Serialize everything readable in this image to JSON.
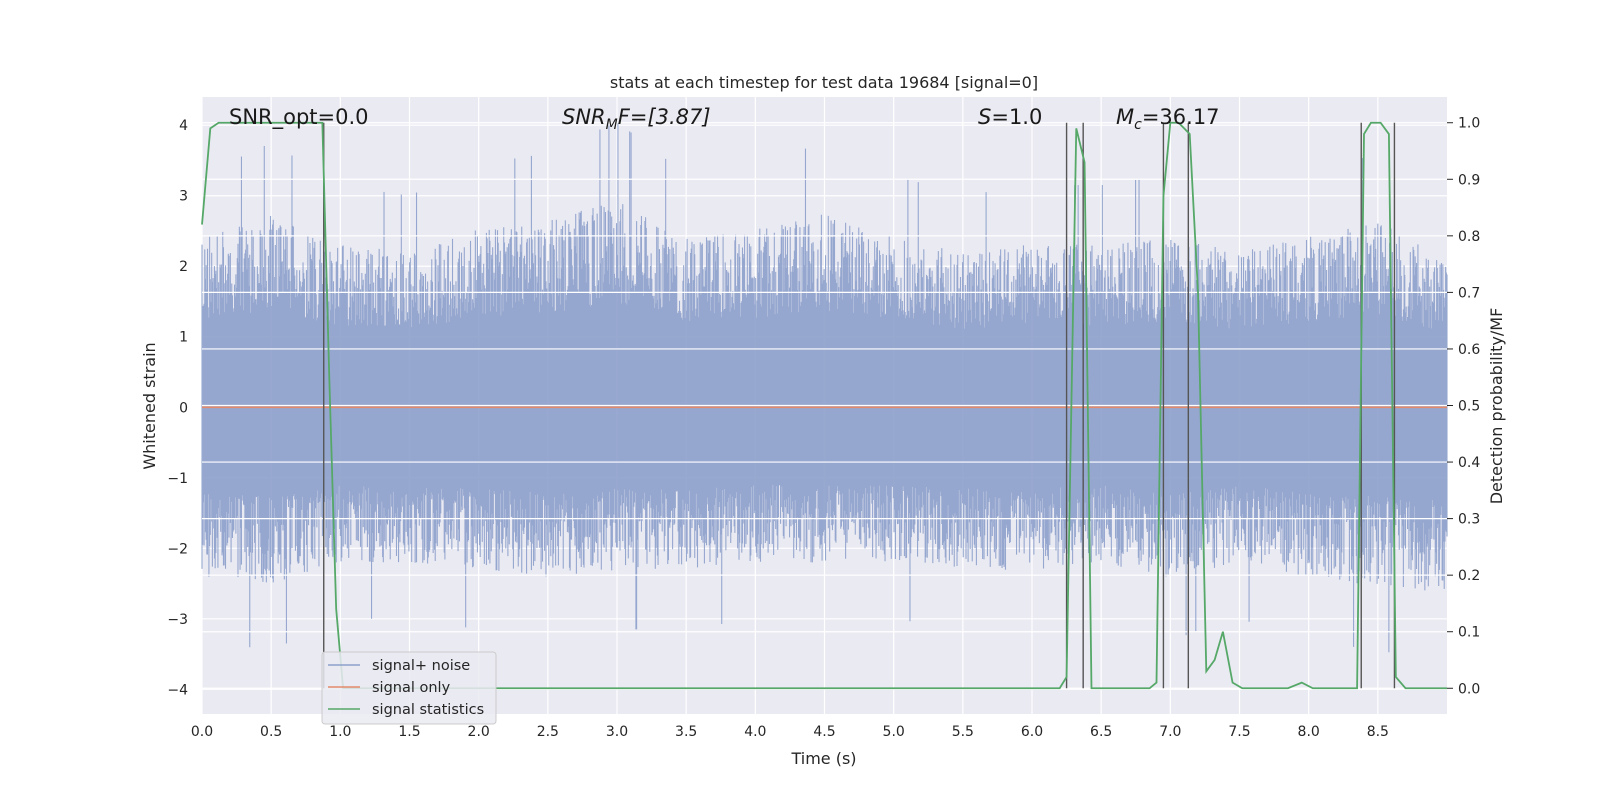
{
  "chart_data": {
    "type": "line",
    "title": "stats at each timestep for test data 19684 [signal=0]",
    "xlabel": "Time (s)",
    "ylabel": "Whitened strain",
    "y2label": "Detection probability/MF",
    "xlim": [
      0,
      9.0
    ],
    "ylim": [
      -4.35,
      4.4
    ],
    "y2lim": [
      -0.0455,
      1.0455
    ],
    "x_ticks": [
      0.0,
      0.5,
      1.0,
      1.5,
      2.0,
      2.5,
      3.0,
      3.5,
      4.0,
      4.5,
      5.0,
      5.5,
      6.0,
      6.5,
      7.0,
      7.5,
      8.0,
      8.5
    ],
    "x_tick_labels": [
      "0.0",
      "0.5",
      "1.0",
      "1.5",
      "2.0",
      "2.5",
      "3.0",
      "3.5",
      "4.0",
      "4.5",
      "5.0",
      "5.5",
      "6.0",
      "6.5",
      "7.0",
      "7.5",
      "8.0",
      "8.5"
    ],
    "y_ticks": [
      -4,
      -3,
      -2,
      -1,
      0,
      1,
      2,
      3,
      4
    ],
    "y_tick_labels": [
      "−4",
      "−3",
      "−2",
      "−1",
      "0",
      "1",
      "2",
      "3",
      "4"
    ],
    "y2_ticks": [
      0.0,
      0.1,
      0.2,
      0.3,
      0.4,
      0.5,
      0.6,
      0.7,
      0.8,
      0.9,
      1.0
    ],
    "y2_tick_labels": [
      "0.0",
      "0.1",
      "0.2",
      "0.3",
      "0.4",
      "0.5",
      "0.6",
      "0.7",
      "0.8",
      "0.9",
      "1.0"
    ],
    "grid": true,
    "legend_position": "lower-left",
    "annotations": {
      "snr_opt": "SNR_opt=0.0",
      "snr_mf_base": "SNR",
      "snr_mf_sub": "M",
      "snr_mf_rest": "F=[3.87]",
      "s_base": "S",
      "s_rest": "=1.0",
      "mc_base": "M",
      "mc_sub": "c",
      "mc_rest": "=36.17"
    },
    "series": [
      {
        "name": "signal+ noise",
        "color": "#8da0cb",
        "kind": "noise",
        "envelope_upper": [
          [
            0.0,
            2.2
          ],
          [
            0.5,
            2.5
          ],
          [
            1.0,
            2.1
          ],
          [
            1.5,
            2.0
          ],
          [
            2.0,
            2.3
          ],
          [
            2.5,
            2.4
          ],
          [
            3.0,
            2.7
          ],
          [
            3.5,
            2.2
          ],
          [
            4.0,
            2.3
          ],
          [
            4.5,
            2.5
          ],
          [
            5.0,
            2.2
          ],
          [
            5.5,
            2.0
          ],
          [
            6.0,
            2.1
          ],
          [
            6.5,
            2.1
          ],
          [
            7.0,
            2.2
          ],
          [
            7.5,
            2.0
          ],
          [
            8.0,
            2.2
          ],
          [
            8.5,
            2.4
          ],
          [
            9.0,
            1.9
          ]
        ],
        "envelope_lower": [
          [
            0.0,
            -2.2
          ],
          [
            0.5,
            -2.3
          ],
          [
            1.0,
            -2.0
          ],
          [
            1.5,
            -2.0
          ],
          [
            2.0,
            -2.1
          ],
          [
            2.5,
            -2.2
          ],
          [
            3.0,
            -2.1
          ],
          [
            3.5,
            -2.1
          ],
          [
            4.0,
            -2.0
          ],
          [
            4.5,
            -2.0
          ],
          [
            5.0,
            -2.0
          ],
          [
            5.5,
            -2.1
          ],
          [
            6.0,
            -2.1
          ],
          [
            6.5,
            -2.0
          ],
          [
            7.0,
            -2.2
          ],
          [
            7.5,
            -2.0
          ],
          [
            8.0,
            -2.2
          ],
          [
            8.5,
            -2.3
          ],
          [
            9.0,
            -2.4
          ]
        ]
      },
      {
        "name": "signal only",
        "color": "#e38a6a",
        "kind": "flat",
        "value": 0.0
      },
      {
        "name": "signal statistics",
        "color": "#55a868",
        "kind": "line",
        "axis": "right",
        "x": [
          0.0,
          0.06,
          0.12,
          0.87,
          0.92,
          0.97,
          1.02,
          6.2,
          6.25,
          6.32,
          6.38,
          6.43,
          6.85,
          6.9,
          6.95,
          7.0,
          7.06,
          7.1,
          7.14,
          7.2,
          7.26,
          7.32,
          7.38,
          7.45,
          7.52,
          7.85,
          7.95,
          8.03,
          8.1,
          8.35,
          8.4,
          8.45,
          8.52,
          8.58,
          8.63,
          8.7,
          8.77,
          9.0
        ],
        "y": [
          0.82,
          0.99,
          1.0,
          1.0,
          0.55,
          0.14,
          0.0,
          0.0,
          0.02,
          0.99,
          0.93,
          0.0,
          0.0,
          0.01,
          0.87,
          1.0,
          1.0,
          0.99,
          0.98,
          0.7,
          0.03,
          0.05,
          0.1,
          0.01,
          0.0,
          0.0,
          0.01,
          0.0,
          0.0,
          0.0,
          0.98,
          1.0,
          1.0,
          0.98,
          0.02,
          0.0,
          0.0,
          0.0
        ]
      }
    ],
    "vertical_markers": [
      0.88,
      6.25,
      6.37,
      6.95,
      7.13,
      8.38,
      8.62
    ],
    "vertical_marker_color": "#555555"
  }
}
